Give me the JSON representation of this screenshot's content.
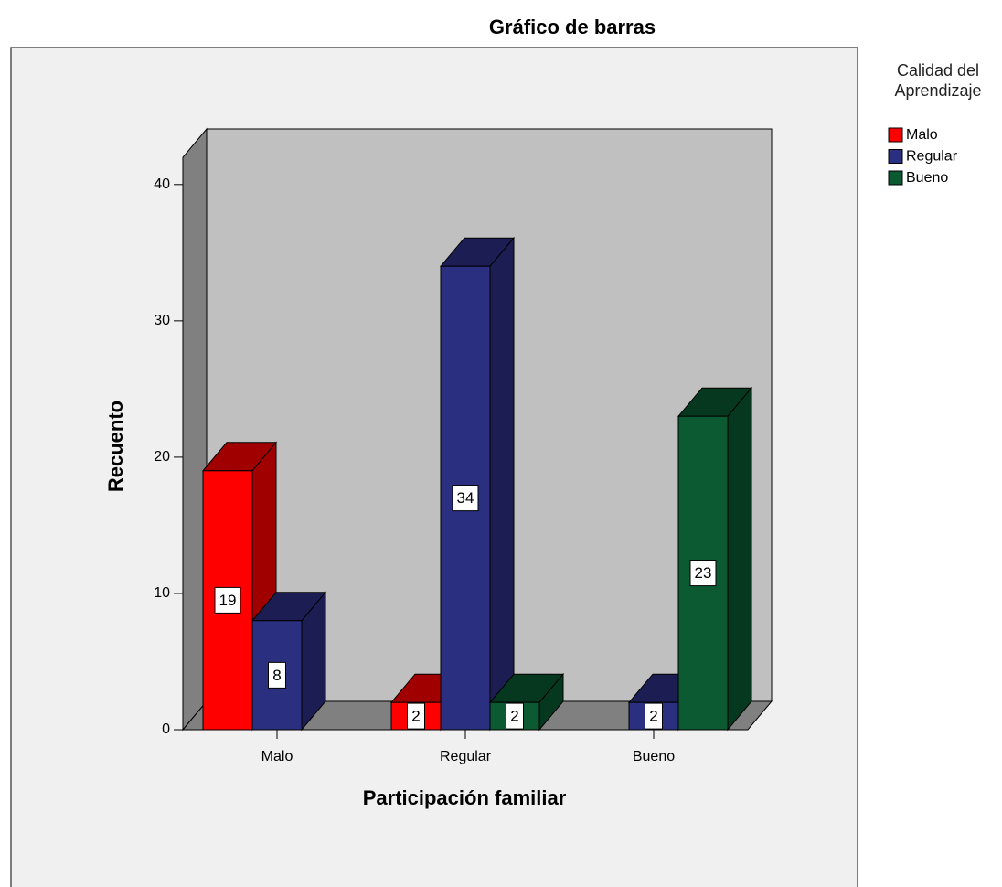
{
  "chart_data": {
    "type": "bar3d",
    "title": "Gráfico de barras",
    "x_label": "Participación familiar",
    "y_label": "Recuento",
    "legend_title": "Calidad del Aprendizaje",
    "categories": [
      "Malo",
      "Regular",
      "Bueno"
    ],
    "series": [
      {
        "name": "Malo",
        "color": "#ff0000",
        "side_color": "#a00000",
        "values": [
          19,
          2,
          null
        ]
      },
      {
        "name": "Regular",
        "color": "#2b2f80",
        "side_color": "#1c1d52",
        "values": [
          8,
          34,
          2
        ]
      },
      {
        "name": "Bueno",
        "color": "#0b5a32",
        "side_color": "#063820",
        "values": [
          null,
          2,
          23
        ]
      }
    ],
    "ylim": [
      0,
      42
    ],
    "yticks": [
      0,
      10,
      20,
      30,
      40
    ],
    "grid": false,
    "legend": "right"
  }
}
